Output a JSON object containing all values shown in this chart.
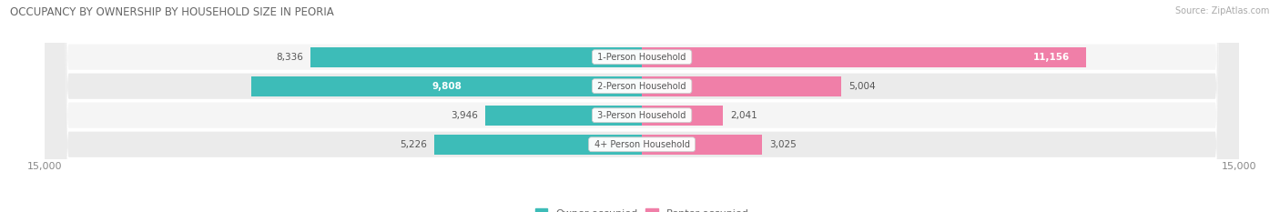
{
  "title": "OCCUPANCY BY OWNERSHIP BY HOUSEHOLD SIZE IN PEORIA",
  "source": "Source: ZipAtlas.com",
  "categories": [
    "1-Person Household",
    "2-Person Household",
    "3-Person Household",
    "4+ Person Household"
  ],
  "owner_values": [
    8336,
    9808,
    3946,
    5226
  ],
  "renter_values": [
    11156,
    5004,
    2041,
    3025
  ],
  "owner_color": "#3dbcb8",
  "renter_color": "#f07fa8",
  "owner_color_light": "#a8dedd",
  "renter_color_light": "#f9c0d4",
  "row_bg_color_odd": "#f0f0f0",
  "row_bg_color_even": "#e6e6e6",
  "xlim": 15000,
  "title_fontsize": 8.5,
  "source_fontsize": 7.0,
  "legend_fontsize": 8.0,
  "value_fontsize": 7.5,
  "category_fontsize": 7.0,
  "axis_label_fontsize": 8.0,
  "bar_height": 0.68,
  "background_color": "#ffffff"
}
